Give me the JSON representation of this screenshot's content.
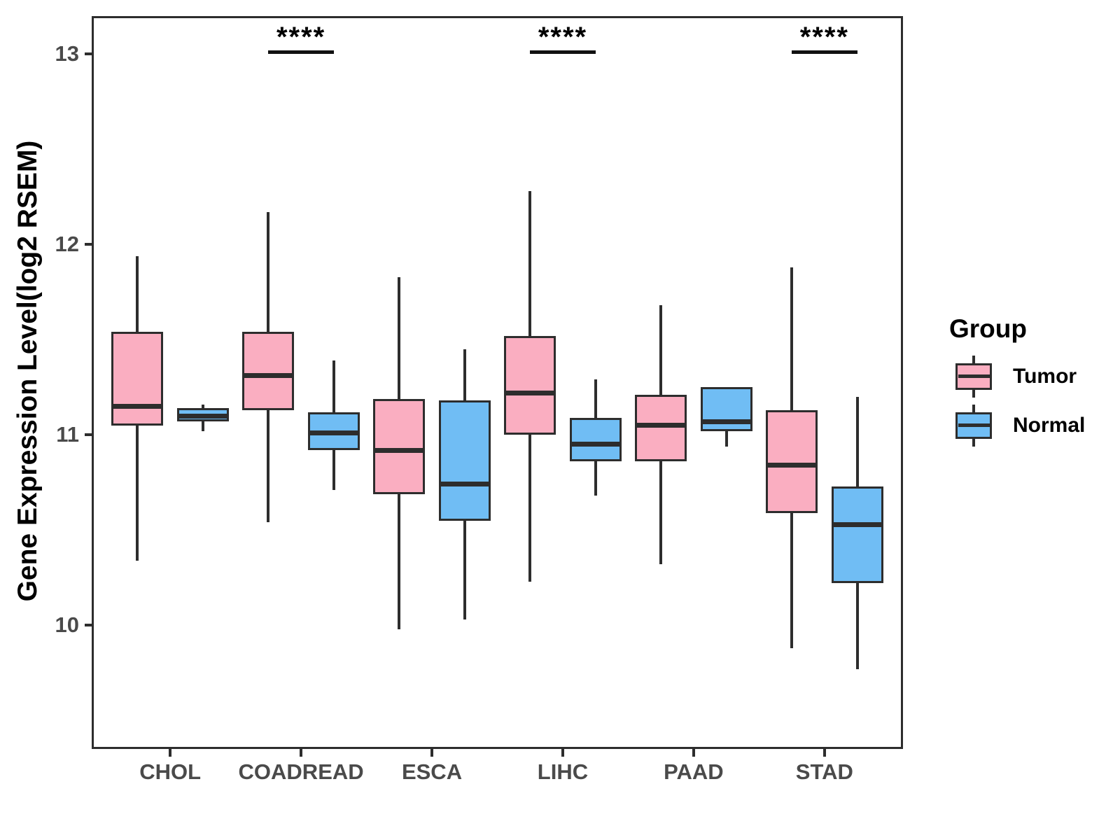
{
  "figure": {
    "background": "#ffffff"
  },
  "colors": {
    "tumor": "#FAAEC1",
    "normal": "#70BDF4",
    "stroke": "#2d2d2d",
    "axis_text": "#4a4a4a",
    "title_text": "#000000",
    "annotation": "#111111"
  },
  "legend": {
    "title": "Group",
    "items": [
      {
        "label": "Tumor",
        "color_key": "tumor"
      },
      {
        "label": "Normal",
        "color_key": "normal"
      }
    ]
  },
  "chart_data": {
    "type": "grouped_boxplot",
    "title": "",
    "xlabel": "",
    "ylabel": "Gene Expression Level(log2 RSEM)",
    "categories": [
      "CHOL",
      "COADREAD",
      "ESCA",
      "LIHC",
      "PAAD",
      "STAD"
    ],
    "yticks": [
      13,
      12,
      11,
      10
    ],
    "ylim": [
      9.35,
      13.2
    ],
    "grid": false,
    "legend_position": "right",
    "series": [
      {
        "name": "Tumor",
        "color_key": "tumor",
        "boxes": [
          {
            "category": "CHOL",
            "min": 10.34,
            "q1": 11.05,
            "median": 11.15,
            "q3": 11.54,
            "max": 11.94
          },
          {
            "category": "COADREAD",
            "min": 10.54,
            "q1": 11.13,
            "median": 11.31,
            "q3": 11.54,
            "max": 12.17
          },
          {
            "category": "ESCA",
            "min": 9.98,
            "q1": 10.69,
            "median": 10.92,
            "q3": 11.19,
            "max": 11.83
          },
          {
            "category": "LIHC",
            "min": 10.23,
            "q1": 11.0,
            "median": 11.22,
            "q3": 11.52,
            "max": 12.28
          },
          {
            "category": "PAAD",
            "min": 10.32,
            "q1": 10.86,
            "median": 11.05,
            "q3": 11.21,
            "max": 11.68
          },
          {
            "category": "STAD",
            "min": 9.88,
            "q1": 10.59,
            "median": 10.84,
            "q3": 11.13,
            "max": 11.88
          }
        ]
      },
      {
        "name": "Normal",
        "color_key": "normal",
        "boxes": [
          {
            "category": "CHOL",
            "min": 11.02,
            "q1": 11.07,
            "median": 11.1,
            "q3": 11.14,
            "max": 11.16
          },
          {
            "category": "COADREAD",
            "min": 10.71,
            "q1": 10.92,
            "median": 11.01,
            "q3": 11.12,
            "max": 11.39
          },
          {
            "category": "ESCA",
            "min": 10.03,
            "q1": 10.55,
            "median": 10.74,
            "q3": 11.18,
            "max": 11.45
          },
          {
            "category": "LIHC",
            "min": 10.68,
            "q1": 10.86,
            "median": 10.95,
            "q3": 11.09,
            "max": 11.29
          },
          {
            "category": "PAAD",
            "min": 10.94,
            "q1": 11.02,
            "median": 11.07,
            "q3": 11.25,
            "max": 11.25
          },
          {
            "category": "STAD",
            "min": 9.77,
            "q1": 10.22,
            "median": 10.53,
            "q3": 10.73,
            "max": 11.2
          }
        ]
      }
    ],
    "significance": [
      {
        "category": "COADREAD",
        "label": "****"
      },
      {
        "category": "LIHC",
        "label": "****"
      },
      {
        "category": "STAD",
        "label": "****"
      }
    ]
  }
}
